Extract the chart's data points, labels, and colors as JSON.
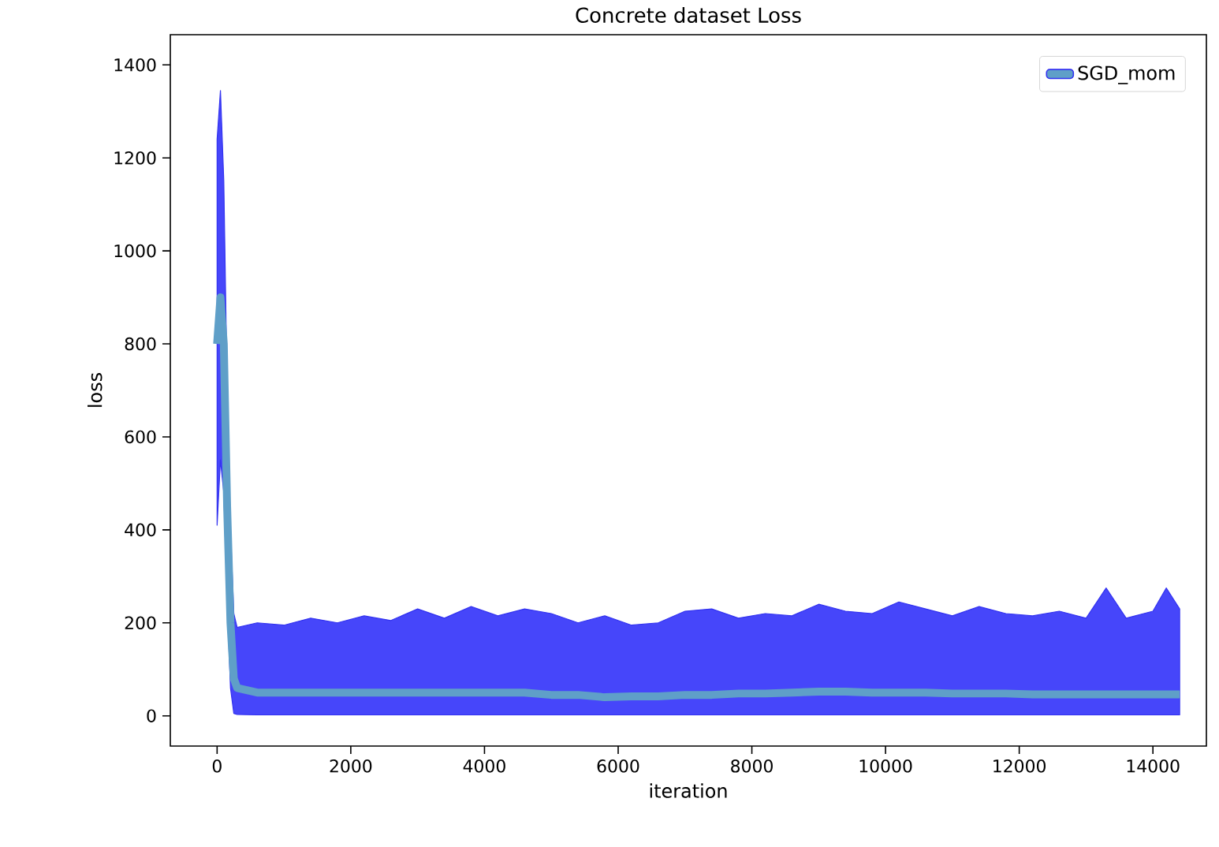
{
  "chart_data": {
    "type": "line",
    "title": "Concrete dataset Loss",
    "xlabel": "iteration",
    "ylabel": "loss",
    "xlim": [
      -700,
      14800
    ],
    "ylim": [
      -65,
      1465
    ],
    "xticks": [
      0,
      2000,
      4000,
      6000,
      8000,
      10000,
      12000,
      14000
    ],
    "yticks": [
      0,
      200,
      400,
      600,
      800,
      1000,
      1200,
      1400
    ],
    "grid": false,
    "legend": "top right",
    "series": [
      {
        "name": "SGD_mom",
        "color": "#5f9fc8",
        "x": [
          0,
          50,
          100,
          150,
          200,
          250,
          300,
          600,
          1000,
          1400,
          1800,
          2200,
          2600,
          3000,
          3400,
          3800,
          4200,
          4600,
          5000,
          5400,
          5800,
          6200,
          6600,
          7000,
          7400,
          7800,
          8200,
          8600,
          9000,
          9400,
          9800,
          10200,
          10600,
          11000,
          11400,
          11800,
          12200,
          12600,
          13000,
          13300,
          13600,
          14000,
          14200,
          14400
        ],
        "values": [
          800,
          900,
          800,
          450,
          200,
          80,
          60,
          50,
          50,
          50,
          50,
          50,
          50,
          50,
          50,
          50,
          50,
          50,
          45,
          45,
          40,
          42,
          42,
          45,
          45,
          48,
          48,
          50,
          52,
          52,
          50,
          50,
          50,
          48,
          48,
          48,
          46,
          46,
          46,
          46,
          46,
          46,
          46,
          46
        ],
        "lower": [
          410,
          550,
          480,
          250,
          60,
          5,
          3,
          2,
          2,
          2,
          2,
          2,
          2,
          2,
          2,
          2,
          2,
          2,
          2,
          2,
          2,
          2,
          2,
          2,
          2,
          2,
          2,
          2,
          2,
          2,
          2,
          2,
          2,
          2,
          2,
          2,
          2,
          2,
          2,
          2,
          2,
          2,
          2,
          2
        ],
        "upper": [
          1240,
          1345,
          1150,
          700,
          400,
          220,
          190,
          200,
          195,
          210,
          200,
          215,
          205,
          230,
          210,
          235,
          215,
          230,
          220,
          200,
          215,
          195,
          200,
          225,
          230,
          210,
          220,
          215,
          240,
          225,
          220,
          245,
          230,
          215,
          235,
          220,
          215,
          225,
          210,
          275,
          210,
          225,
          275,
          230
        ]
      }
    ]
  }
}
